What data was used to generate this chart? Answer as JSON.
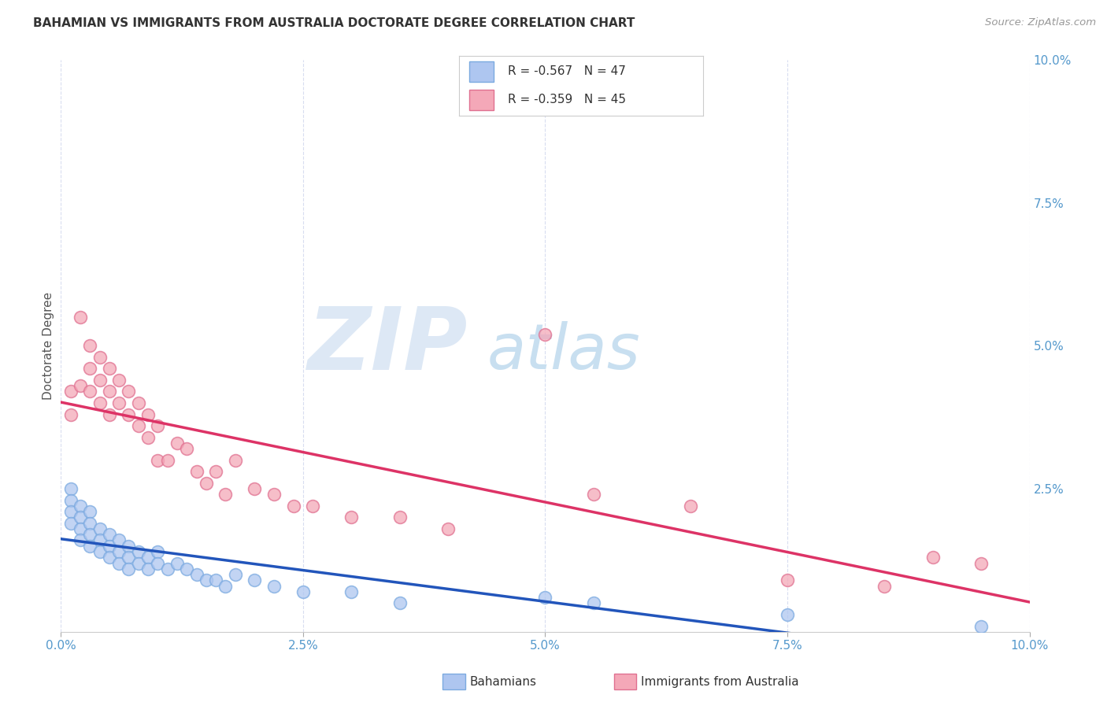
{
  "title": "BAHAMIAN VS IMMIGRANTS FROM AUSTRALIA DOCTORATE DEGREE CORRELATION CHART",
  "source": "Source: ZipAtlas.com",
  "ylabel": "Doctorate Degree",
  "x_min": 0.0,
  "x_max": 0.1,
  "y_min": 0.0,
  "y_max": 0.1,
  "x_ticks": [
    0.0,
    0.025,
    0.05,
    0.075,
    0.1
  ],
  "x_tick_labels": [
    "0.0%",
    "2.5%",
    "5.0%",
    "7.5%",
    "10.0%"
  ],
  "y_ticks_right": [
    0.025,
    0.05,
    0.075,
    0.1
  ],
  "y_tick_labels_right": [
    "2.5%",
    "5.0%",
    "7.5%",
    "10.0%"
  ],
  "legend_label_1": "R = -0.567   N = 47",
  "legend_label_2": "R = -0.359   N = 45",
  "bahamian_color": "#aec6f0",
  "australia_color": "#f4a8b8",
  "bahamian_edge_color": "#7baae0",
  "australia_edge_color": "#e07090",
  "bahamian_line_color": "#2255bb",
  "australia_line_color": "#dd3366",
  "background_color": "#ffffff",
  "grid_color": "#d8ddf0",
  "bahamian_x": [
    0.001,
    0.001,
    0.001,
    0.001,
    0.002,
    0.002,
    0.002,
    0.002,
    0.003,
    0.003,
    0.003,
    0.003,
    0.004,
    0.004,
    0.004,
    0.005,
    0.005,
    0.005,
    0.006,
    0.006,
    0.006,
    0.007,
    0.007,
    0.007,
    0.008,
    0.008,
    0.009,
    0.009,
    0.01,
    0.01,
    0.011,
    0.012,
    0.013,
    0.014,
    0.015,
    0.016,
    0.017,
    0.018,
    0.02,
    0.022,
    0.025,
    0.03,
    0.035,
    0.05,
    0.055,
    0.075,
    0.095
  ],
  "bahamian_y": [
    0.025,
    0.023,
    0.021,
    0.019,
    0.022,
    0.02,
    0.018,
    0.016,
    0.021,
    0.019,
    0.017,
    0.015,
    0.018,
    0.016,
    0.014,
    0.017,
    0.015,
    0.013,
    0.016,
    0.014,
    0.012,
    0.015,
    0.013,
    0.011,
    0.014,
    0.012,
    0.013,
    0.011,
    0.014,
    0.012,
    0.011,
    0.012,
    0.011,
    0.01,
    0.009,
    0.009,
    0.008,
    0.01,
    0.009,
    0.008,
    0.007,
    0.007,
    0.005,
    0.006,
    0.005,
    0.003,
    0.001
  ],
  "australia_x": [
    0.001,
    0.001,
    0.002,
    0.002,
    0.003,
    0.003,
    0.003,
    0.004,
    0.004,
    0.004,
    0.005,
    0.005,
    0.005,
    0.006,
    0.006,
    0.007,
    0.007,
    0.008,
    0.008,
    0.009,
    0.009,
    0.01,
    0.01,
    0.011,
    0.012,
    0.013,
    0.014,
    0.015,
    0.016,
    0.017,
    0.018,
    0.02,
    0.022,
    0.024,
    0.026,
    0.03,
    0.035,
    0.04,
    0.05,
    0.055,
    0.065,
    0.075,
    0.085,
    0.09,
    0.095
  ],
  "australia_y": [
    0.042,
    0.038,
    0.055,
    0.043,
    0.05,
    0.046,
    0.042,
    0.048,
    0.044,
    0.04,
    0.046,
    0.042,
    0.038,
    0.044,
    0.04,
    0.042,
    0.038,
    0.04,
    0.036,
    0.038,
    0.034,
    0.036,
    0.03,
    0.03,
    0.033,
    0.032,
    0.028,
    0.026,
    0.028,
    0.024,
    0.03,
    0.025,
    0.024,
    0.022,
    0.022,
    0.02,
    0.02,
    0.018,
    0.052,
    0.024,
    0.022,
    0.009,
    0.008,
    0.013,
    0.012
  ]
}
